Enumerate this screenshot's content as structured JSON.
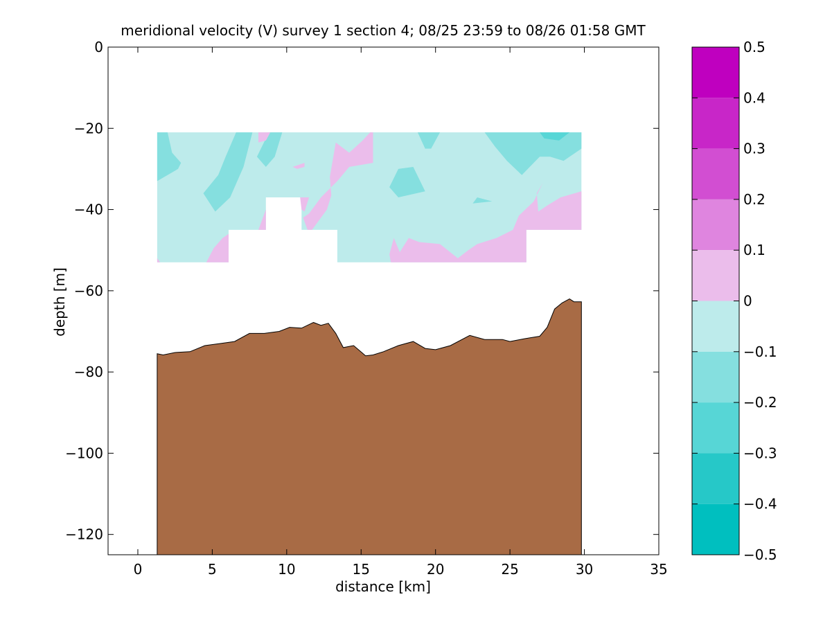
{
  "chart_data": {
    "type": "heatmap",
    "title": "meridional velocity (V) survey 1 section 4; 08/25 23:59 to 08/26 01:58 GMT",
    "xlabel": "distance [km]",
    "ylabel": "depth [m]",
    "xlim": [
      -2,
      35
    ],
    "ylim": [
      -125,
      0
    ],
    "xticks": [
      0,
      5,
      10,
      15,
      20,
      25,
      30,
      35
    ],
    "xtick_labels": [
      "0",
      "5",
      "10",
      "15",
      "20",
      "25",
      "30",
      "35"
    ],
    "yticks": [
      0,
      -20,
      -40,
      -60,
      -80,
      -100,
      -120
    ],
    "ytick_labels": [
      "0",
      "−20",
      "−40",
      "−60",
      "−80",
      "−100",
      "−120"
    ],
    "grid": false,
    "colorbar": {
      "range": [
        -0.5,
        0.5
      ],
      "ticks": [
        0.5,
        0.4,
        0.3,
        0.2,
        0.1,
        0,
        -0.1,
        -0.2,
        -0.3,
        -0.4,
        -0.5
      ],
      "tick_labels": [
        "0.5",
        "0.4",
        "0.3",
        "0.2",
        "0.1",
        "0",
        "−0.1",
        "−0.2",
        "−0.3",
        "−0.4",
        "−0.5"
      ],
      "levels": [
        {
          "from": 0.4,
          "to": 0.5,
          "color": "#bf00bf"
        },
        {
          "from": 0.3,
          "to": 0.4,
          "color": "#c826c8"
        },
        {
          "from": 0.2,
          "to": 0.3,
          "color": "#d24ed2"
        },
        {
          "from": 0.1,
          "to": 0.2,
          "color": "#df85df"
        },
        {
          "from": 0.0,
          "to": 0.1,
          "color": "#ebbdeb"
        },
        {
          "from": -0.1,
          "to": 0.0,
          "color": "#bdebeb"
        },
        {
          "from": -0.2,
          "to": -0.1,
          "color": "#85dfdf"
        },
        {
          "from": -0.3,
          "to": -0.2,
          "color": "#57d6d6"
        },
        {
          "from": -0.4,
          "to": -0.3,
          "color": "#26c8c8"
        },
        {
          "from": -0.5,
          "to": -0.4,
          "color": "#00bfbf"
        }
      ]
    },
    "bottom_color": "#a86b45",
    "bathymetry": {
      "x": [
        1.3,
        1.7,
        2.5,
        3.5,
        4.5,
        5.5,
        6.5,
        7.5,
        8.5,
        9.5,
        10.2,
        11,
        11.8,
        12.3,
        12.8,
        13.3,
        13.8,
        14.5,
        15.3,
        15.8,
        16.5,
        17.5,
        18.5,
        19.3,
        20,
        21,
        22.3,
        23.3,
        24.5,
        25,
        26,
        27,
        27.5,
        28,
        28.5,
        29,
        29.3,
        29.8
      ],
      "y": [
        -75.5,
        -75.8,
        -75.2,
        -75,
        -73.5,
        -73,
        -72.5,
        -70.5,
        -70.5,
        -70,
        -69,
        -69.2,
        -67.8,
        -68.5,
        -68,
        -70.5,
        -74,
        -73.5,
        -76,
        -75.8,
        -75,
        -73.5,
        -72.5,
        -74.2,
        -74.5,
        -73.5,
        -71,
        -72,
        -72,
        -72.5,
        -71.8,
        -71.2,
        -69,
        -64.5,
        -63,
        -62,
        -62.7,
        -62.7
      ]
    },
    "velocity_regions": [
      {
        "level": -0.05,
        "polygon": [
          [
            1.3,
            -21
          ],
          [
            29.8,
            -21
          ],
          [
            29.8,
            -45
          ],
          [
            26.1,
            -45
          ],
          [
            26.1,
            -53
          ],
          [
            13.4,
            -53
          ],
          [
            13.4,
            -45
          ],
          [
            11,
            -45
          ],
          [
            11,
            -37
          ],
          [
            8.6,
            -37
          ],
          [
            8.6,
            -45
          ],
          [
            6.1,
            -45
          ],
          [
            6.1,
            -53
          ],
          [
            1.3,
            -53
          ]
        ]
      },
      {
        "level": -0.15,
        "polygon": [
          [
            1.3,
            -21
          ],
          [
            2.0,
            -21
          ],
          [
            2.3,
            -26
          ],
          [
            2.9,
            -28.5
          ],
          [
            2.7,
            -30
          ],
          [
            1.3,
            -33
          ]
        ]
      },
      {
        "level": -0.15,
        "polygon": [
          [
            6.6,
            -21
          ],
          [
            5.9,
            -27
          ],
          [
            5.4,
            -31.5
          ],
          [
            4.4,
            -36
          ],
          [
            5.2,
            -40.5
          ],
          [
            6.2,
            -37
          ],
          [
            7.1,
            -29.5
          ],
          [
            7.7,
            -21
          ]
        ]
      },
      {
        "level": -0.15,
        "polygon": [
          [
            8.8,
            -21
          ],
          [
            9.7,
            -21
          ],
          [
            9.2,
            -27
          ],
          [
            8.6,
            -29.5
          ],
          [
            8.0,
            -27
          ]
        ]
      },
      {
        "level": -0.15,
        "polygon": [
          [
            17.5,
            -30
          ],
          [
            18.5,
            -29.5
          ],
          [
            19.3,
            -35.5
          ],
          [
            17.5,
            -37
          ],
          [
            16.9,
            -34.5
          ]
        ]
      },
      {
        "level": -0.15,
        "polygon": [
          [
            18.8,
            -21
          ],
          [
            20.3,
            -21
          ],
          [
            19.7,
            -25
          ],
          [
            19.3,
            -25
          ]
        ]
      },
      {
        "level": -0.15,
        "polygon": [
          [
            23.3,
            -21
          ],
          [
            29.8,
            -21
          ],
          [
            29.8,
            -25
          ],
          [
            28.6,
            -28
          ],
          [
            27.7,
            -27
          ],
          [
            27,
            -27
          ],
          [
            25.8,
            -31.5
          ],
          [
            24.8,
            -28
          ],
          [
            24.0,
            -24.5
          ]
        ]
      },
      {
        "level": -0.15,
        "polygon": [
          [
            22.5,
            -38.5
          ],
          [
            23.8,
            -38
          ],
          [
            22.8,
            -37
          ]
        ]
      },
      {
        "level": -0.25,
        "polygon": [
          [
            27.0,
            -21
          ],
          [
            29.0,
            -21
          ],
          [
            28.3,
            -23
          ],
          [
            27.3,
            -22.5
          ]
        ]
      },
      {
        "level": 0.05,
        "polygon": [
          [
            8.1,
            -21
          ],
          [
            8.9,
            -21
          ],
          [
            8.6,
            -23
          ],
          [
            8.1,
            -23.5
          ]
        ]
      },
      {
        "level": 0.05,
        "polygon": [
          [
            10.4,
            -29.5
          ],
          [
            11.2,
            -28.5
          ],
          [
            11.2,
            -29.5
          ],
          [
            10.7,
            -30
          ]
        ]
      },
      {
        "level": 0.05,
        "polygon": [
          [
            13.3,
            -23.5
          ],
          [
            14.2,
            -26
          ],
          [
            15.1,
            -23
          ],
          [
            15.6,
            -21
          ],
          [
            15.8,
            -21
          ],
          [
            15.8,
            -28.5
          ],
          [
            14.2,
            -29.5
          ],
          [
            13.4,
            -33
          ],
          [
            12.3,
            -37
          ],
          [
            11.5,
            -41
          ],
          [
            11.1,
            -42
          ],
          [
            11.4,
            -45
          ],
          [
            11.7,
            -45
          ],
          [
            12.7,
            -40
          ],
          [
            13.0,
            -36.5
          ],
          [
            12.9,
            -32
          ]
        ]
      },
      {
        "level": 0.05,
        "polygon": [
          [
            8.6,
            -40
          ],
          [
            8.6,
            -45
          ],
          [
            8.1,
            -45
          ]
        ]
      },
      {
        "level": 0.05,
        "polygon": [
          [
            10.9,
            -37
          ],
          [
            11.5,
            -37
          ],
          [
            11.2,
            -40.5
          ],
          [
            11.0,
            -40
          ]
        ]
      },
      {
        "level": 0.05,
        "polygon": [
          [
            4.6,
            -53
          ],
          [
            6.1,
            -53
          ],
          [
            6.1,
            -46
          ],
          [
            5.7,
            -47
          ],
          [
            5.1,
            -49.5
          ]
        ]
      },
      {
        "level": 0.05,
        "polygon": [
          [
            1.3,
            -52
          ],
          [
            1.5,
            -53
          ],
          [
            1.3,
            -53
          ]
        ]
      },
      {
        "level": 0.05,
        "polygon": [
          [
            17.0,
            -53
          ],
          [
            26.1,
            -53
          ],
          [
            26.1,
            -45
          ],
          [
            29.8,
            -45
          ],
          [
            29.8,
            -35.5
          ],
          [
            28.4,
            -37
          ],
          [
            27.5,
            -39
          ],
          [
            26.9,
            -40.5
          ],
          [
            26.8,
            -36
          ],
          [
            27.2,
            -33.5
          ],
          [
            26.6,
            -38
          ],
          [
            25.6,
            -41.5
          ],
          [
            25.2,
            -45
          ],
          [
            24.1,
            -47
          ],
          [
            22.8,
            -48.5
          ],
          [
            22.2,
            -50
          ],
          [
            21.5,
            -52
          ],
          [
            20.3,
            -48.5
          ],
          [
            18.9,
            -48
          ],
          [
            18.2,
            -47
          ],
          [
            17.6,
            -50.5
          ],
          [
            17.2,
            -47
          ],
          [
            16.9,
            -51
          ]
        ]
      }
    ]
  }
}
